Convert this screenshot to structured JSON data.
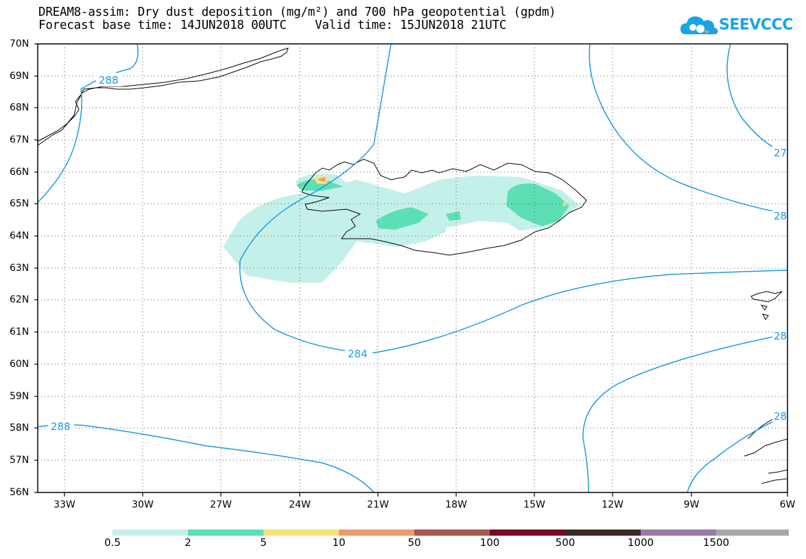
{
  "title": {
    "line1": "DREAM8-assim: Dry dust deposition (mg/m²) and 700 hPa geopotential (gpdm)",
    "line2": "Forecast base time: 14JUN2018 00UTC    Valid time: 15JUN2018 21UTC"
  },
  "logo": {
    "text": "SEEVCCC",
    "icon": "cloud-icon",
    "color": "#1aa3e6"
  },
  "axes": {
    "lat_labels": [
      "70N",
      "69N",
      "68N",
      "67N",
      "66N",
      "65N",
      "64N",
      "63N",
      "62N",
      "61N",
      "60N",
      "59N",
      "58N",
      "57N",
      "56N"
    ],
    "lon_labels": [
      "33W",
      "30W",
      "27W",
      "24W",
      "21W",
      "18W",
      "15W",
      "12W",
      "9W",
      "6W"
    ]
  },
  "contours": {
    "color": "#1a9be0",
    "labels": [
      "288",
      "288",
      "284",
      "27",
      "28",
      "28",
      "28"
    ]
  },
  "colorbar": {
    "colors": [
      "#c4f0ea",
      "#5ddfb6",
      "#f3e37a",
      "#ed9a6c",
      "#a6584c",
      "#7a0a28",
      "#3c2a20",
      "#9b7aa6",
      "#a8a8a8"
    ],
    "labels": [
      "0.5",
      "2",
      "5",
      "10",
      "50",
      "100",
      "500",
      "1000",
      "1500"
    ]
  }
}
